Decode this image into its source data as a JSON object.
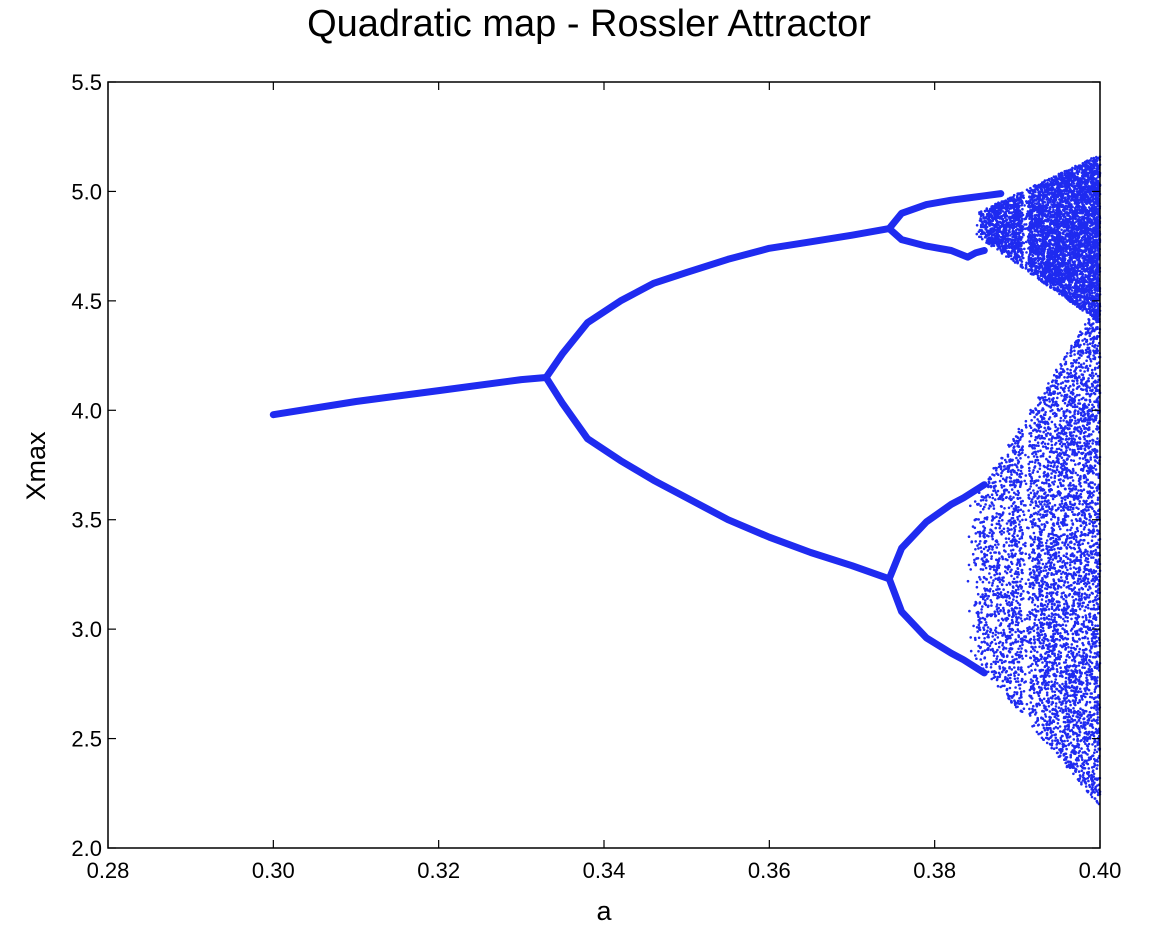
{
  "chart_data": {
    "type": "scatter",
    "title": "Quadratic map - Rossler Attractor",
    "xlabel": "a",
    "ylabel": "Xmax",
    "xlim": [
      0.28,
      0.4
    ],
    "ylim": [
      2.0,
      5.5
    ],
    "xticks": [
      "0.28",
      "0.30",
      "0.32",
      "0.34",
      "0.36",
      "0.38",
      "0.40"
    ],
    "yticks": [
      "2.0",
      "2.5",
      "3.0",
      "3.5",
      "4.0",
      "4.5",
      "5.0",
      "5.5"
    ],
    "grid": false,
    "series": [
      {
        "color": "#1f2bf0",
        "branches": [
          {
            "points": [
              [
                0.3,
                3.98
              ],
              [
                0.31,
                4.04
              ],
              [
                0.32,
                4.09
              ],
              [
                0.33,
                4.14
              ],
              [
                0.333,
                4.15
              ]
            ]
          },
          {
            "points": [
              [
                0.333,
                4.15
              ],
              [
                0.335,
                4.26
              ],
              [
                0.338,
                4.4
              ],
              [
                0.342,
                4.5
              ],
              [
                0.346,
                4.58
              ],
              [
                0.35,
                4.63
              ],
              [
                0.355,
                4.69
              ],
              [
                0.36,
                4.74
              ],
              [
                0.365,
                4.77
              ],
              [
                0.37,
                4.8
              ],
              [
                0.3745,
                4.83
              ]
            ]
          },
          {
            "points": [
              [
                0.333,
                4.15
              ],
              [
                0.335,
                4.03
              ],
              [
                0.338,
                3.87
              ],
              [
                0.342,
                3.77
              ],
              [
                0.346,
                3.68
              ],
              [
                0.35,
                3.6
              ],
              [
                0.355,
                3.5
              ],
              [
                0.36,
                3.42
              ],
              [
                0.365,
                3.35
              ],
              [
                0.37,
                3.29
              ],
              [
                0.3745,
                3.23
              ]
            ]
          },
          {
            "points": [
              [
                0.3745,
                4.83
              ],
              [
                0.376,
                4.9
              ],
              [
                0.379,
                4.94
              ],
              [
                0.382,
                4.96
              ],
              [
                0.384,
                4.97
              ],
              [
                0.386,
                4.98
              ],
              [
                0.388,
                4.99
              ]
            ]
          },
          {
            "points": [
              [
                0.3745,
                4.83
              ],
              [
                0.376,
                4.78
              ],
              [
                0.379,
                4.75
              ],
              [
                0.382,
                4.73
              ],
              [
                0.384,
                4.7
              ],
              [
                0.385,
                4.72
              ],
              [
                0.386,
                4.73
              ]
            ]
          },
          {
            "points": [
              [
                0.3745,
                3.23
              ],
              [
                0.376,
                3.37
              ],
              [
                0.379,
                3.49
              ],
              [
                0.382,
                3.57
              ],
              [
                0.3835,
                3.6
              ],
              [
                0.386,
                3.66
              ]
            ]
          },
          {
            "points": [
              [
                0.3745,
                3.23
              ],
              [
                0.376,
                3.08
              ],
              [
                0.379,
                2.96
              ],
              [
                0.382,
                2.89
              ],
              [
                0.3835,
                2.86
              ],
              [
                0.386,
                2.8
              ]
            ]
          }
        ],
        "chaotic_upper_band": {
          "x_start": 0.385,
          "x_end": 0.4,
          "top_at_end": 5.17,
          "bottom_at_end": 4.4
        },
        "chaotic_lower_band": {
          "x_start": 0.384,
          "x_end": 0.4,
          "top_at_end": 4.5,
          "bottom_at_end": 2.19
        },
        "period3_window_x": 0.391
      }
    ]
  }
}
